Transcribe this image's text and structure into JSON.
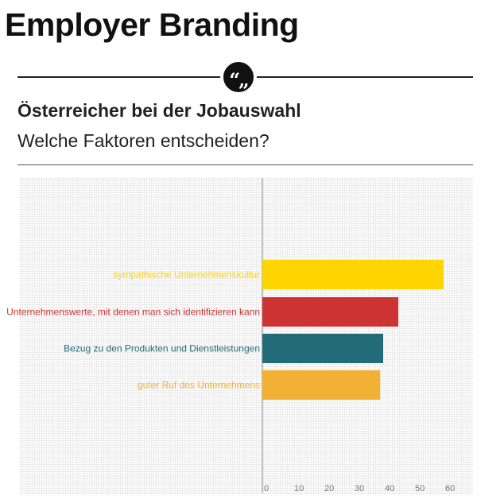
{
  "header": {
    "title": "Employer Branding",
    "quote_glyph": "“„"
  },
  "section": {
    "heading": "Österreicher bei der Jobauswahl",
    "subheading": "Welche Faktoren entscheiden?"
  },
  "chart_data": {
    "type": "bar",
    "orientation": "horizontal",
    "categories": [
      "sympathische Unternehmenskultur",
      "Unternehmenswerte, mit denen man sich identifizieren kann",
      "Bezug zu den Produkten und Dienstleistungen",
      "guter Ruf des Unternehmens"
    ],
    "values": [
      60,
      45,
      40,
      39
    ],
    "colors": [
      "#FFD500",
      "#CC3333",
      "#246B78",
      "#F2B134"
    ],
    "xlim": [
      0,
      62
    ],
    "xticks": [
      "0",
      "10",
      "20",
      "30",
      "40",
      "50",
      "60"
    ],
    "tick_values": [
      0,
      10,
      20,
      30,
      40,
      50,
      60
    ],
    "grid": true
  }
}
